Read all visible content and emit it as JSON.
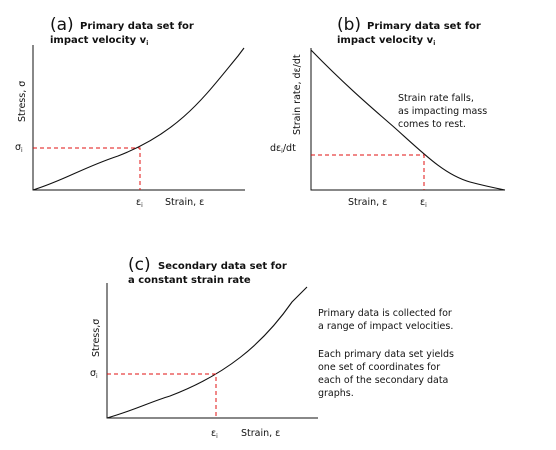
{
  "panel_a": {
    "letter": "(a)",
    "title_line1": "Primary data set for",
    "title_line2": "impact velocity v",
    "title_sub": "i",
    "y_axis_label": "Stress, σ",
    "y_tick": "σ",
    "y_tick_sub": "i",
    "x_tick": "ε",
    "x_tick_sub": "i",
    "x_axis_label": "Strain, ε"
  },
  "panel_b": {
    "letter": "(b)",
    "title_line1": "Primary data set for",
    "title_line2": "impact velocity v",
    "title_sub": "i",
    "y_axis_label": "Strain rate, dε/dt",
    "y_tick": "dε",
    "y_tick_sub": "i",
    "y_tick_suffix": "/dt",
    "x_tick": "ε",
    "x_tick_sub": "i",
    "x_axis_label": "Strain, ε",
    "note_lines": [
      "Strain rate falls,",
      "as impacting mass",
      "comes to rest."
    ]
  },
  "panel_c": {
    "letter": "(c)",
    "title_line1": "Secondary data set for",
    "title_line2": "a constant strain rate",
    "y_axis_label": "Stress,σ",
    "y_tick": "σ",
    "y_tick_sub": "i",
    "x_tick": "ε",
    "x_tick_sub": "i",
    "x_axis_label": "Strain, ε"
  },
  "notes": {
    "para1_lines": [
      "Primary data is collected for",
      "a range of impact velocities."
    ],
    "para2_lines": [
      "Each primary data set yields",
      "one set of coordinates for",
      "each of the secondary data",
      "graphs."
    ]
  },
  "colors": {
    "ink": "#111111",
    "guide": "#e01010"
  }
}
